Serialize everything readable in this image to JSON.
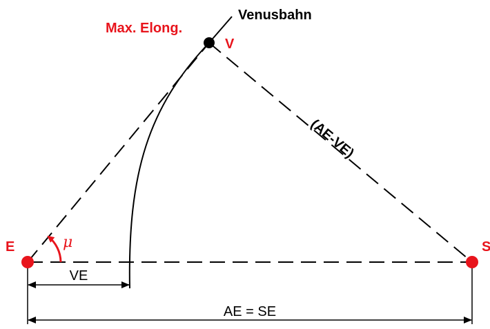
{
  "labels": {
    "earth": "E",
    "sun": "S",
    "venus": "V",
    "max_elongation": "Max. Elong.",
    "venus_orbit": "Venusbahn",
    "angle_mu": "μ",
    "venus_sun_distance": "(AE-VE)",
    "venus_earth_distance": "VE",
    "earth_sun_distance": "AE = SE"
  },
  "colors": {
    "accent_red": "#e8141c",
    "line_black": "#000000",
    "background": "#ffffff"
  }
}
